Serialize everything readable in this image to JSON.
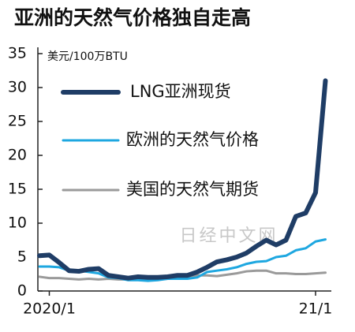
{
  "chart_data": {
    "type": "line",
    "title": "亚洲的天然气价格独自走高",
    "y_label": "美元/100万BTU",
    "watermark": "日经中文网",
    "categories": [
      null,
      "2020/1",
      null,
      null,
      null,
      null,
      null,
      null,
      null,
      null,
      null,
      null,
      null,
      null,
      null,
      null,
      null,
      null,
      null,
      null,
      null,
      null,
      null,
      null,
      null,
      null,
      null,
      null,
      "21/1",
      null
    ],
    "ylim": [
      0,
      35
    ],
    "yticks": [
      0,
      5,
      10,
      15,
      20,
      25,
      30,
      35
    ],
    "grid": false,
    "series": [
      {
        "name": "LNG亚洲现货",
        "color": "#1f3d66",
        "values": [
          5.2,
          5.3,
          4.2,
          3.0,
          2.9,
          3.2,
          3.3,
          2.3,
          2.1,
          1.9,
          2.1,
          2.0,
          2.0,
          2.1,
          2.3,
          2.3,
          2.8,
          3.5,
          4.3,
          4.6,
          5.0,
          5.6,
          6.6,
          7.5,
          6.8,
          7.5,
          11.0,
          11.5,
          14.5,
          31
        ]
      },
      {
        "name": "欧洲的天然气价格",
        "color": "#1ea7e0",
        "values": [
          3.6,
          3.6,
          3.5,
          3.0,
          3.0,
          2.8,
          2.6,
          2.0,
          1.9,
          1.6,
          1.6,
          1.5,
          1.6,
          1.8,
          1.8,
          1.8,
          2.0,
          2.8,
          3.0,
          3.2,
          3.5,
          4.0,
          4.3,
          4.4,
          5.0,
          5.2,
          6.0,
          6.3,
          7.3,
          7.6
        ]
      },
      {
        "name": "美国的天然气期货",
        "color": "#9a9a9a",
        "values": [
          2.1,
          1.9,
          1.9,
          1.8,
          1.7,
          1.8,
          1.7,
          1.8,
          1.7,
          1.7,
          1.8,
          1.7,
          1.7,
          1.8,
          1.8,
          1.9,
          2.3,
          2.3,
          2.2,
          2.4,
          2.6,
          2.9,
          3.0,
          3.0,
          2.6,
          2.6,
          2.5,
          2.5,
          2.6,
          2.7
        ]
      }
    ]
  }
}
